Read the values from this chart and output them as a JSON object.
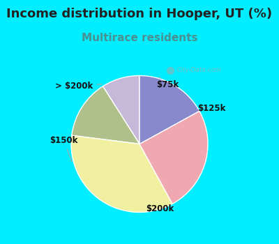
{
  "title": "Income distribution in Hooper, UT (%)",
  "subtitle": "Multirace residents",
  "title_fontsize": 13,
  "subtitle_fontsize": 11,
  "title_color": "#222222",
  "subtitle_color": "#4a9090",
  "background_color": "#00eeff",
  "chart_bg_color": "#f0f8f4",
  "labels": [
    "$75k",
    "$125k",
    "$200k",
    "$150k",
    "> $200k"
  ],
  "sizes": [
    9,
    14,
    35,
    25,
    17
  ],
  "colors": [
    "#c5b8d8",
    "#afc08a",
    "#f0f0a0",
    "#f0a8b0",
    "#8888cc"
  ],
  "startangle": 90,
  "label_fontsize": 8.5,
  "watermark": "City-Data.com"
}
